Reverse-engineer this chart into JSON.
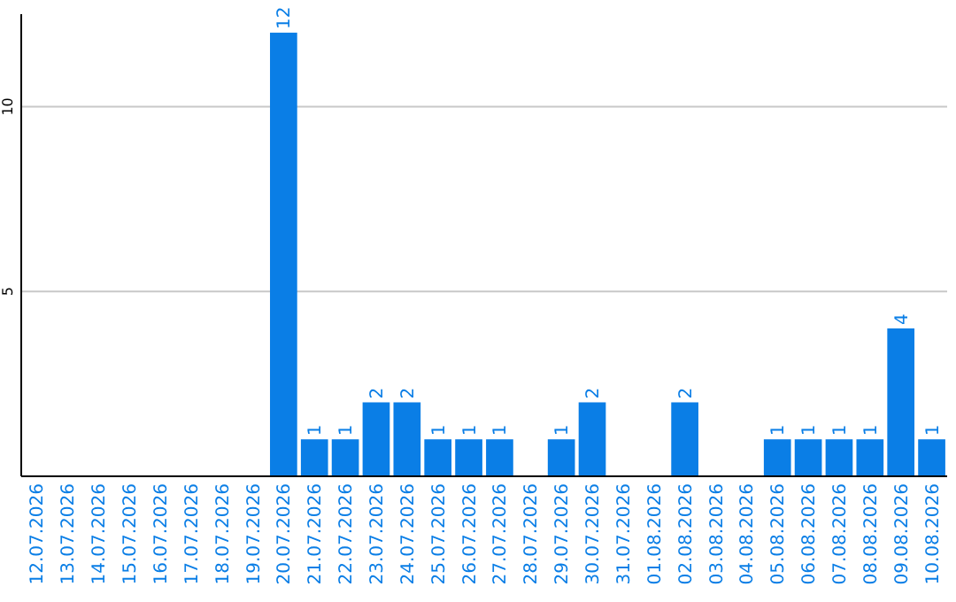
{
  "chart_data": {
    "type": "bar",
    "categories": [
      "12.07.2026",
      "13.07.2026",
      "14.07.2026",
      "15.07.2026",
      "16.07.2026",
      "17.07.2026",
      "18.07.2026",
      "19.07.2026",
      "20.07.2026",
      "21.07.2026",
      "22.07.2026",
      "23.07.2026",
      "24.07.2026",
      "25.07.2026",
      "26.07.2026",
      "27.07.2026",
      "28.07.2026",
      "29.07.2026",
      "30.07.2026",
      "31.07.2026",
      "01.08.2026",
      "02.08.2026",
      "03.08.2026",
      "04.08.2026",
      "05.08.2026",
      "06.08.2026",
      "07.08.2026",
      "08.08.2026",
      "09.08.2026",
      "10.08.2026"
    ],
    "values": [
      0,
      0,
      0,
      0,
      0,
      0,
      0,
      0,
      12,
      1,
      1,
      2,
      2,
      1,
      1,
      1,
      0,
      1,
      2,
      0,
      0,
      2,
      0,
      0,
      1,
      1,
      1,
      1,
      4,
      1
    ],
    "value_labels": [
      null,
      null,
      null,
      null,
      null,
      null,
      null,
      null,
      "12",
      "1",
      "1",
      "2",
      "2",
      "1",
      "1",
      "1",
      null,
      "1",
      "2",
      null,
      null,
      "2",
      null,
      null,
      "1",
      "1",
      "1",
      "1",
      "4",
      "1"
    ],
    "color": "#0a7ee6",
    "ylim": [
      0,
      12.5
    ],
    "yticks": [
      {
        "value": 0,
        "label": null
      },
      5,
      10
    ],
    "grid": "y"
  }
}
